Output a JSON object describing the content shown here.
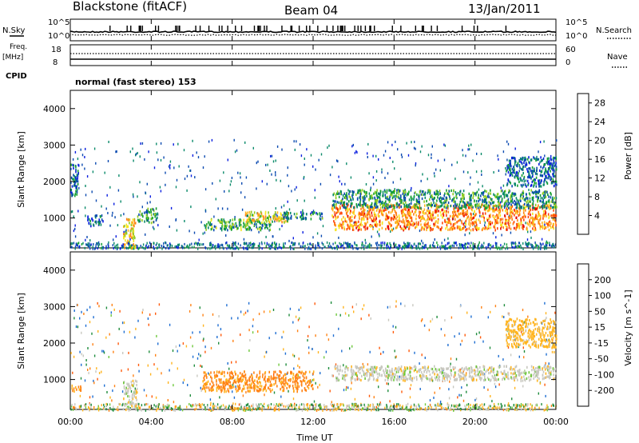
{
  "header": {
    "station": "Blackstone (fitACF)",
    "beam": "Beam 04",
    "date": "13/Jan/2011"
  },
  "summary_panel": {
    "nsky_label": "N.Sky",
    "nsky_ticks": [
      "10^5",
      "10^0"
    ],
    "nsearch_label": "N.Search",
    "nsearch_ticks": [
      "10^5",
      "10^0"
    ],
    "freq_label": "Freq.",
    "freq_unit": "[MHz]",
    "freq_ticks": [
      "18",
      "8"
    ],
    "nave_label": "Nave",
    "nave_ticks": [
      "60",
      "0"
    ],
    "cpid_label": "CPID",
    "cpid_value": "normal (fast stereo) 153"
  },
  "x_axis": {
    "label": "Time UT",
    "ticks": [
      "00:00",
      "04:00",
      "08:00",
      "12:00",
      "16:00",
      "20:00",
      "00:00"
    ]
  },
  "chart_data": [
    {
      "type": "heatmap",
      "name": "power",
      "ylabel": "Slant Range [km]",
      "ylim": [
        180,
        4500
      ],
      "yticks": [
        1000,
        2000,
        3000,
        4000
      ],
      "xlim_hours": [
        0,
        24
      ],
      "colorbar": {
        "label": "Power [dB]",
        "ticks": [
          4,
          8,
          12,
          16,
          20,
          24,
          28
        ],
        "range": [
          0,
          30
        ],
        "colors": [
          "#0a1ee0",
          "#0a4ab0",
          "#0a8a6a",
          "#14a030",
          "#8ecb1e",
          "#f6e61e",
          "#ffb41e",
          "#ff8214",
          "#ff460a",
          "#e60000"
        ]
      },
      "features": [
        {
          "t": [
            0.0,
            0.4
          ],
          "r": [
            1600,
            2500
          ],
          "level": 6
        },
        {
          "t": [
            0.8,
            1.6
          ],
          "r": [
            800,
            1100
          ],
          "level": 5
        },
        {
          "t": [
            2.6,
            3.2
          ],
          "r": [
            200,
            1000
          ],
          "level": 18
        },
        {
          "t": [
            3.3,
            4.3
          ],
          "r": [
            900,
            1300
          ],
          "level": 10
        },
        {
          "t": [
            6.5,
            10.0
          ],
          "r": [
            700,
            1000
          ],
          "level": 10
        },
        {
          "t": [
            8.5,
            10.8
          ],
          "r": [
            900,
            1200
          ],
          "level": 17
        },
        {
          "t": [
            10.5,
            12.5
          ],
          "r": [
            1000,
            1200
          ],
          "level": 7
        },
        {
          "t": [
            12.9,
            24.0
          ],
          "r": [
            700,
            1400
          ],
          "level": 22
        },
        {
          "t": [
            12.9,
            24.0
          ],
          "r": [
            1300,
            1800
          ],
          "level": 9
        },
        {
          "t": [
            21.5,
            24.0
          ],
          "r": [
            1900,
            2700
          ],
          "level": 6
        }
      ]
    },
    {
      "type": "heatmap",
      "name": "velocity",
      "ylabel": "Slant Range [km]",
      "ylim": [
        180,
        4500
      ],
      "yticks": [
        1000,
        2000,
        3000,
        4000
      ],
      "xlim_hours": [
        0,
        24
      ],
      "colorbar": {
        "label": "Velocity [m s^-1]",
        "ticks": [
          200,
          100,
          50,
          15,
          -15,
          -50,
          -100,
          -200
        ],
        "colors": [
          "#1e3ab4",
          "#1e6ed2",
          "#1e8c3c",
          "#6ec83c",
          "#c8c8c0",
          "#ffb41e",
          "#ff8214",
          "#ff5a0a",
          "#e60000"
        ]
      },
      "features": [
        {
          "t": [
            0.0,
            0.5
          ],
          "r": [
            700,
            900
          ],
          "level": -50
        },
        {
          "t": [
            2.6,
            3.3
          ],
          "r": [
            200,
            1000
          ],
          "level": 0
        },
        {
          "t": [
            6.5,
            12.0
          ],
          "r": [
            700,
            1250
          ],
          "level": -60
        },
        {
          "t": [
            12.9,
            24.0
          ],
          "r": [
            1000,
            1400
          ],
          "level": 0
        },
        {
          "t": [
            21.5,
            24.0
          ],
          "r": [
            1900,
            2700
          ],
          "level": -30
        }
      ]
    }
  ]
}
